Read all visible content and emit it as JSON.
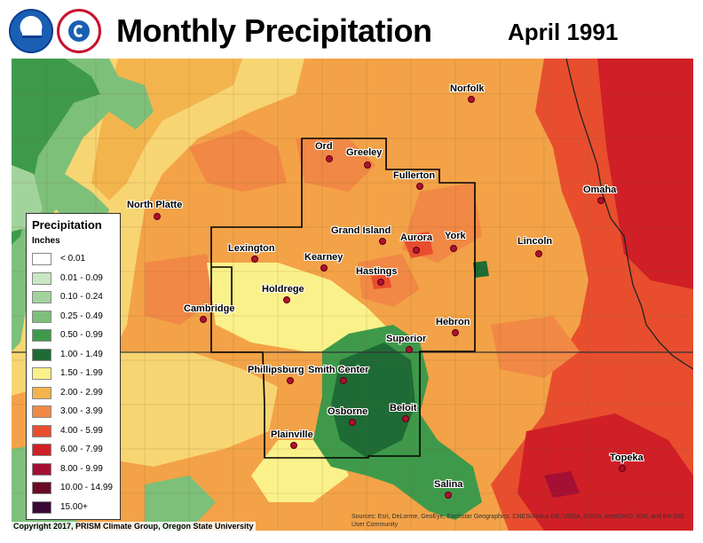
{
  "header": {
    "title": "Monthly Precipitation",
    "period": "April 1991"
  },
  "legend": {
    "title": "Precipitation",
    "units": "Inches",
    "bins": [
      {
        "label": "< 0.01",
        "color": "#ffffff"
      },
      {
        "label": "0.01 - 0.09",
        "color": "#c9e7c3"
      },
      {
        "label": "0.10 - 0.24",
        "color": "#a3d39c"
      },
      {
        "label": "0.25 - 0.49",
        "color": "#7cc07a"
      },
      {
        "label": "0.50 - 0.99",
        "color": "#3e9a4a"
      },
      {
        "label": "1.00 - 1.49",
        "color": "#1e6b35"
      },
      {
        "label": "1.50 - 1.99",
        "color": "#fbf18a"
      },
      {
        "label": "2.00 - 2.99",
        "color": "#f3b44e"
      },
      {
        "label": "3.00 - 3.99",
        "color": "#f18845"
      },
      {
        "label": "4.00 - 5.99",
        "color": "#e84e2e"
      },
      {
        "label": "6.00 - 7.99",
        "color": "#d01f26"
      },
      {
        "label": "8.00 - 9.99",
        "color": "#a40f33"
      },
      {
        "label": "10.00 - 14.99",
        "color": "#6a0a26"
      },
      {
        "label": "15.00+",
        "color": "#3a0838"
      }
    ]
  },
  "cities": [
    {
      "name": "Norfolk"
    },
    {
      "name": "Ord"
    },
    {
      "name": "Greeley"
    },
    {
      "name": "Fullerton"
    },
    {
      "name": "Omaha"
    },
    {
      "name": "North Platte"
    },
    {
      "name": "Grand Island"
    },
    {
      "name": "Aurora"
    },
    {
      "name": "York"
    },
    {
      "name": "Lincoln"
    },
    {
      "name": "Lexington"
    },
    {
      "name": "Kearney"
    },
    {
      "name": "Hastings"
    },
    {
      "name": "Holdrege"
    },
    {
      "name": "Cambridge"
    },
    {
      "name": "Hebron"
    },
    {
      "name": "Superior"
    },
    {
      "name": "Phillipsburg"
    },
    {
      "name": "Smith Center"
    },
    {
      "name": "Osborne"
    },
    {
      "name": "Beloit"
    },
    {
      "name": "Plainville"
    },
    {
      "name": "Salina"
    },
    {
      "name": "Topeka"
    }
  ],
  "footer": {
    "copyright": "Copyright 2017, PRISM Climate Group, Oregon State University",
    "sources": "Sources: Esri, DeLorme, GeoEye, Earthstar Geographics, CNES/Airbus DS, USDA, USGS, AeroGRID, IGN, and the GIS User Community"
  },
  "logos": {
    "noaa": "NOAA",
    "nws": "National Weather Service"
  }
}
